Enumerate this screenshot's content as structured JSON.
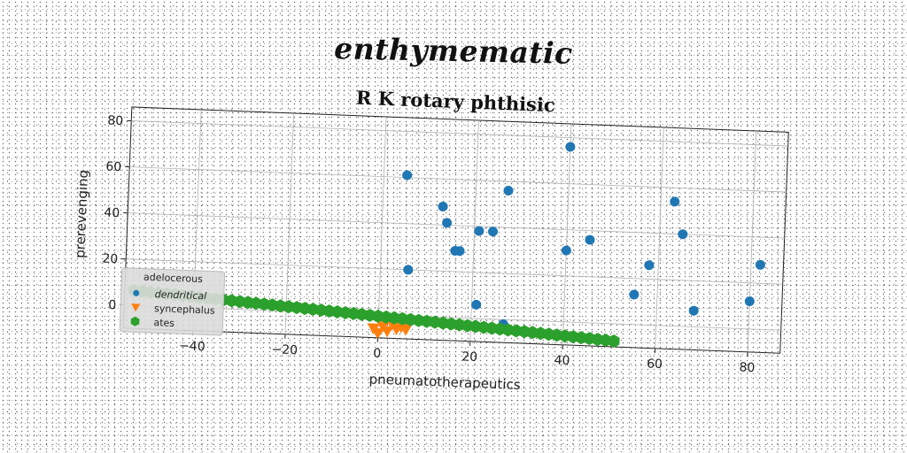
{
  "suptitle": "enthymematic",
  "chart_data": {
    "type": "scatter",
    "title": "R K rotary phthisic",
    "xlabel": "pneumatotherapeutics",
    "ylabel": "prerevenging",
    "xlim": [
      -55,
      87
    ],
    "ylim": [
      -10,
      86
    ],
    "xticks": [
      -40,
      -20,
      0,
      20,
      40,
      60,
      80
    ],
    "yticks": [
      0,
      20,
      40,
      60,
      80
    ],
    "grid": true,
    "legend": {
      "title": "adelocerous",
      "placement": "lower-left"
    },
    "series": [
      {
        "name": "dendritical",
        "marker": "circle",
        "color": "#1f77b4",
        "points": [
          [
            5,
            61
          ],
          [
            6,
            20
          ],
          [
            13,
            48
          ],
          [
            14,
            41
          ],
          [
            16,
            29
          ],
          [
            17,
            29
          ],
          [
            21,
            38
          ],
          [
            24,
            38
          ],
          [
            27,
            56
          ],
          [
            21,
            6
          ],
          [
            27,
            -2
          ],
          [
            40,
            76
          ],
          [
            40,
            31
          ],
          [
            45,
            36
          ],
          [
            55,
            13
          ],
          [
            58,
            26
          ],
          [
            63,
            54
          ],
          [
            65,
            40
          ],
          [
            68,
            7
          ],
          [
            80,
            12
          ],
          [
            82,
            28
          ]
        ]
      },
      {
        "name": "syncephalus",
        "marker": "triangle-down",
        "color": "#ff7f0e",
        "points": [
          [
            -1,
            -6
          ],
          [
            0,
            -8
          ],
          [
            1,
            -5
          ],
          [
            2,
            -7
          ],
          [
            3,
            -4
          ],
          [
            4,
            -6
          ],
          [
            5,
            -5
          ],
          [
            6,
            -6
          ]
        ]
      },
      {
        "name": "ates",
        "marker": "hexagon",
        "color": "#2ca02c",
        "x_range": [
          -53,
          51
        ],
        "y_range": [
          6.5,
          -7.5
        ],
        "count": 60
      }
    ]
  }
}
